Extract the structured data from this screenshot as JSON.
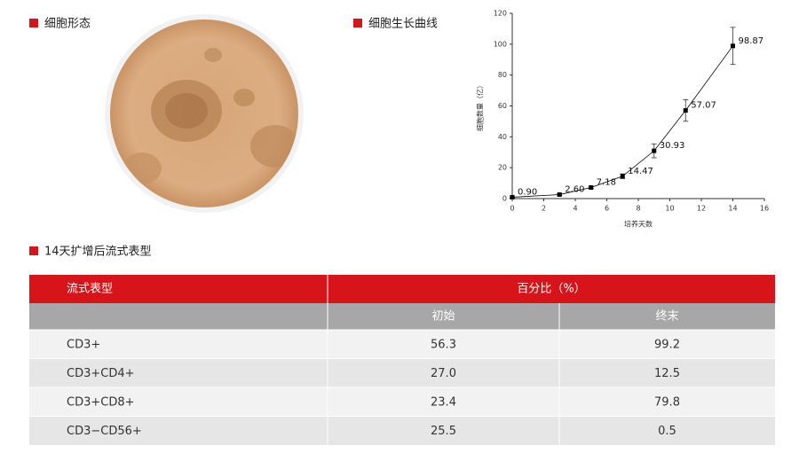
{
  "panels": [
    {
      "title": "细胞形态"
    },
    {
      "title": "细胞生长曲线"
    },
    {
      "title": "14天扩增后流式表型"
    }
  ],
  "chart_data": {
    "type": "line",
    "x_label": "培养天数",
    "y_label": "细胞数量（亿）",
    "x": [
      0,
      3,
      5,
      7,
      9,
      11,
      14
    ],
    "values": [
      0.9,
      2.6,
      7.18,
      14.47,
      30.93,
      57.07,
      98.87
    ],
    "value_labels": [
      "0.90",
      "2.60",
      "7.18",
      "14.47",
      "30.93",
      "57.07",
      "98.87"
    ],
    "errors": [
      0.3,
      0.5,
      0.8,
      1.5,
      4.5,
      7,
      12
    ],
    "color": "#000000",
    "xlim": [
      0,
      16
    ],
    "xticks": [
      0,
      2,
      4,
      6,
      8,
      10,
      12,
      14,
      16
    ],
    "ylim": [
      0,
      120
    ],
    "yticks": [
      0,
      20,
      40,
      60,
      80,
      100,
      120
    ]
  },
  "table": {
    "header": [
      "流式表型",
      "百分比（%）"
    ],
    "subheader": [
      "初始",
      "终末"
    ],
    "rows": [
      [
        "CD3+",
        "56.3",
        "99.2"
      ],
      [
        "CD3+CD4+",
        "27.0",
        "12.5"
      ],
      [
        "CD3+CD8+",
        "23.4",
        "79.8"
      ],
      [
        "CD3−CD56+",
        "25.5",
        "0.5"
      ]
    ]
  }
}
